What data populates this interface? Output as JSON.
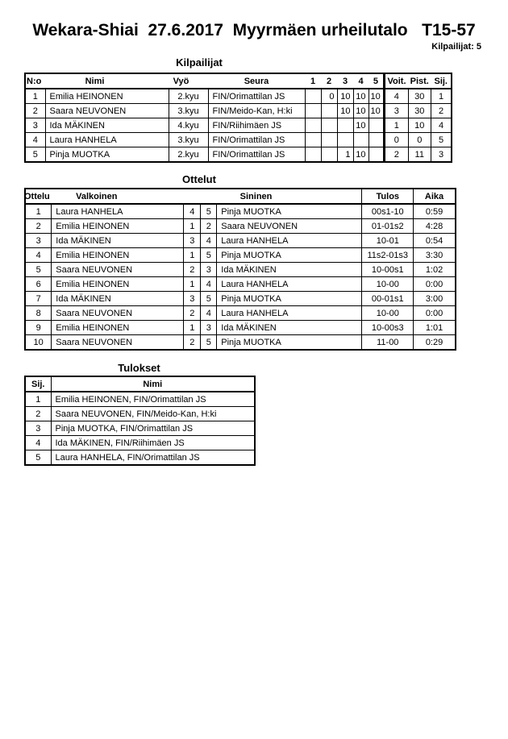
{
  "page": {
    "title": "Wekara-Shiai  27.6.2017  Myyrmäen urheilutalo   T15-57",
    "competitors_count_label": "Kilpailijat: 5"
  },
  "colors": {
    "text": "#000000",
    "border": "#000000",
    "background": "#ffffff"
  },
  "kilpailijat": {
    "heading": "Kilpailijat",
    "headers": [
      "N:o",
      "Nimi",
      "Vyö",
      "Seura",
      "1",
      "2",
      "3",
      "4",
      "5",
      "Voit.",
      "Pist.",
      "Sij."
    ],
    "rows": [
      [
        "1",
        "Emilia HEINONEN",
        "2.kyu",
        "FIN/Orimattilan JS",
        "",
        "0",
        "10",
        "10",
        "10",
        "4",
        "30",
        "1"
      ],
      [
        "2",
        "Saara NEUVONEN",
        "3.kyu",
        "FIN/Meido-Kan, H:ki",
        "",
        "",
        "10",
        "10",
        "10",
        "3",
        "30",
        "2"
      ],
      [
        "3",
        "Ida MÄKINEN",
        "4.kyu",
        "FIN/Riihimäen JS",
        "",
        "",
        "",
        "10",
        "",
        "1",
        "10",
        "4"
      ],
      [
        "4",
        "Laura HANHELA",
        "3.kyu",
        "FIN/Orimattilan JS",
        "",
        "",
        "",
        "",
        "",
        "0",
        "0",
        "5"
      ],
      [
        "5",
        "Pinja MUOTKA",
        "2.kyu",
        "FIN/Orimattilan JS",
        "",
        "",
        "1",
        "10",
        "",
        "2",
        "11",
        "3"
      ]
    ]
  },
  "ottelut": {
    "heading": "Ottelut",
    "headers": [
      "Ottelu",
      "Valkoinen",
      "",
      "",
      "Sininen",
      "Tulos",
      "Aika"
    ],
    "rows": [
      [
        "1",
        "Laura HANHELA",
        "4",
        "5",
        "Pinja MUOTKA",
        "00s1-10",
        "0:59"
      ],
      [
        "2",
        "Emilia HEINONEN",
        "1",
        "2",
        "Saara NEUVONEN",
        "01-01s2",
        "4:28"
      ],
      [
        "3",
        "Ida MÄKINEN",
        "3",
        "4",
        "Laura HANHELA",
        "10-01",
        "0:54"
      ],
      [
        "4",
        "Emilia HEINONEN",
        "1",
        "5",
        "Pinja MUOTKA",
        "11s2-01s3",
        "3:30"
      ],
      [
        "5",
        "Saara NEUVONEN",
        "2",
        "3",
        "Ida MÄKINEN",
        "10-00s1",
        "1:02"
      ],
      [
        "6",
        "Emilia HEINONEN",
        "1",
        "4",
        "Laura HANHELA",
        "10-00",
        "0:00"
      ],
      [
        "7",
        "Ida MÄKINEN",
        "3",
        "5",
        "Pinja MUOTKA",
        "00-01s1",
        "3:00"
      ],
      [
        "8",
        "Saara NEUVONEN",
        "2",
        "4",
        "Laura HANHELA",
        "10-00",
        "0:00"
      ],
      [
        "9",
        "Emilia HEINONEN",
        "1",
        "3",
        "Ida MÄKINEN",
        "10-00s3",
        "1:01"
      ],
      [
        "10",
        "Saara NEUVONEN",
        "2",
        "5",
        "Pinja MUOTKA",
        "11-00",
        "0:29"
      ]
    ]
  },
  "tulokset": {
    "heading": "Tulokset",
    "headers": [
      "Sij.",
      "Nimi"
    ],
    "rows": [
      [
        "1",
        "Emilia HEINONEN, FIN/Orimattilan JS"
      ],
      [
        "2",
        "Saara NEUVONEN, FIN/Meido-Kan, H:ki"
      ],
      [
        "3",
        "Pinja MUOTKA, FIN/Orimattilan JS"
      ],
      [
        "4",
        "Ida MÄKINEN, FIN/Riihimäen JS"
      ],
      [
        "5",
        "Laura HANHELA, FIN/Orimattilan JS"
      ]
    ]
  }
}
